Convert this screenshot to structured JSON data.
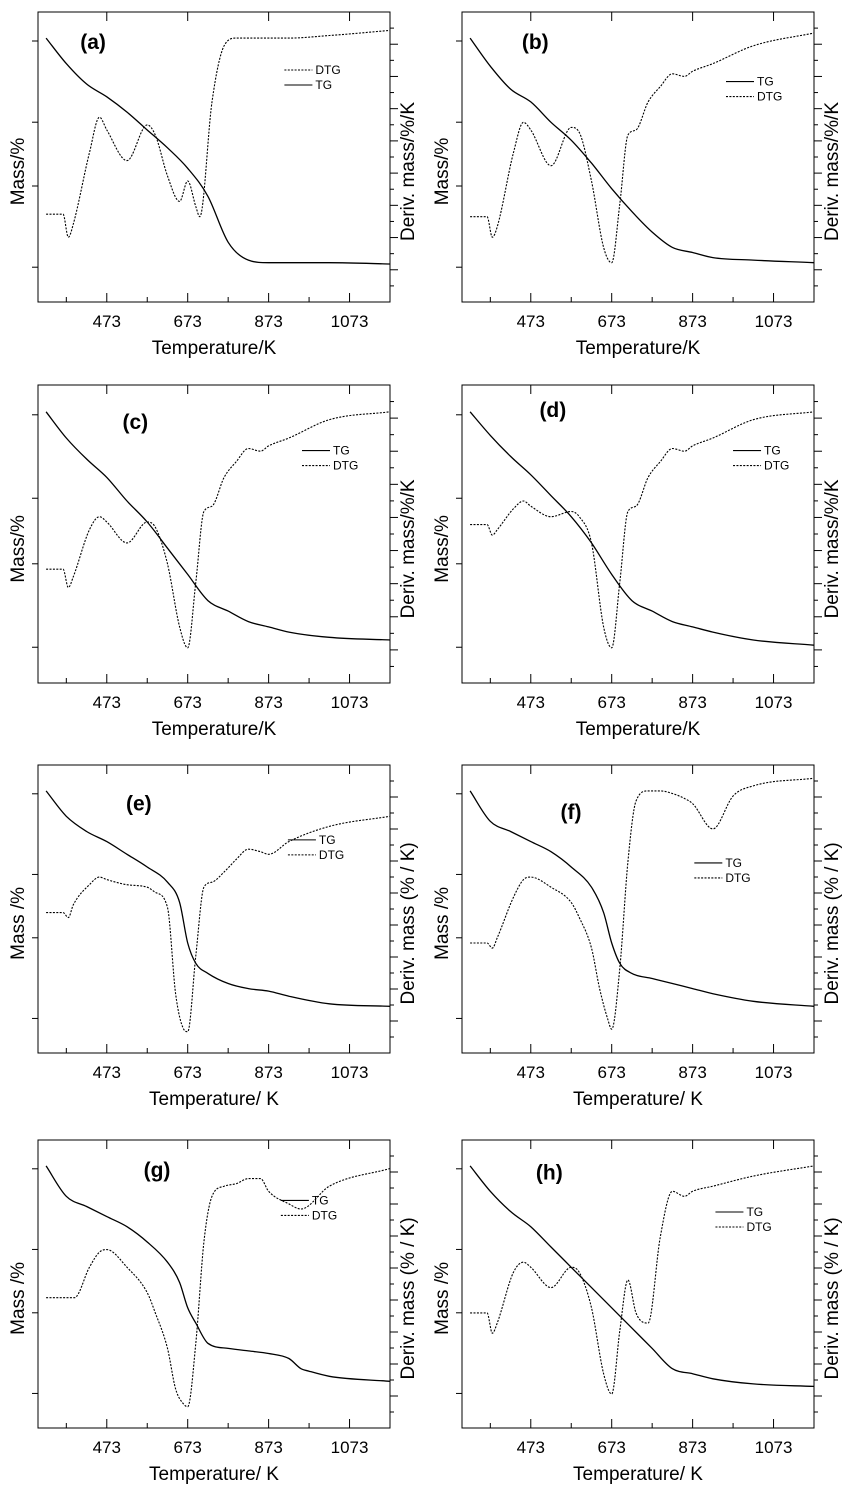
{
  "chart_data": [
    {
      "type": "line",
      "panel_label": "(a)",
      "xlabel": "Temperature/K",
      "ylabel_left": "Mass/%",
      "ylabel_right": "Deriv. mass/%/K",
      "x_ticks": [
        "473",
        "673",
        "873",
        "1073"
      ],
      "xlim": [
        303,
        1173
      ],
      "legend": [
        {
          "name": "DTG",
          "style": "dotted"
        },
        {
          "name": "TG",
          "style": "solid"
        }
      ],
      "legend_position": "top-right",
      "series": [
        {
          "name": "TG",
          "axis": "left",
          "x": [
            323,
            373,
            423,
            473,
            523,
            573,
            623,
            673,
            723,
            773,
            823,
            873,
            923,
            1023,
            1173
          ],
          "y": [
            1.0,
            0.9,
            0.82,
            0.77,
            0.71,
            0.64,
            0.57,
            0.49,
            0.38,
            0.2,
            0.13,
            0.12,
            0.12,
            0.12,
            0.115
          ]
        },
        {
          "name": "DTG",
          "axis": "right",
          "x": [
            323,
            365,
            378,
            390,
            430,
            455,
            473,
            523,
            573,
            593,
            623,
            653,
            673,
            693,
            703,
            733,
            763,
            793,
            823,
            873,
            923,
            1023,
            1173
          ],
          "y": [
            0.31,
            0.31,
            0.22,
            0.27,
            0.55,
            0.69,
            0.64,
            0.52,
            0.66,
            0.62,
            0.46,
            0.36,
            0.44,
            0.34,
            0.3,
            0.75,
            0.97,
            1.0,
            1.0,
            1.0,
            1.0,
            1.01,
            1.03
          ]
        }
      ]
    },
    {
      "type": "line",
      "panel_label": "(b)",
      "xlabel": "Temperature/K",
      "ylabel_left": "Mass/%",
      "ylabel_right": "Deriv. mass/%/K",
      "x_ticks": [
        "473",
        "673",
        "873",
        "1073"
      ],
      "xlim": [
        303,
        1173
      ],
      "legend": [
        {
          "name": "TG",
          "style": "solid"
        },
        {
          "name": "DTG",
          "style": "dotted"
        }
      ],
      "legend_position": "top-right",
      "series": [
        {
          "name": "TG",
          "axis": "left",
          "x": [
            323,
            373,
            423,
            473,
            523,
            573,
            623,
            673,
            723,
            773,
            823,
            873,
            923,
            1023,
            1173
          ],
          "y": [
            1.0,
            0.89,
            0.8,
            0.75,
            0.67,
            0.6,
            0.51,
            0.41,
            0.32,
            0.24,
            0.18,
            0.16,
            0.14,
            0.13,
            0.12
          ]
        },
        {
          "name": "DTG",
          "axis": "right",
          "x": [
            323,
            365,
            378,
            390,
            430,
            455,
            473,
            523,
            573,
            593,
            623,
            653,
            673,
            693,
            713,
            733,
            763,
            793,
            823,
            853,
            873,
            923,
            1023,
            1173
          ],
          "y": [
            0.3,
            0.3,
            0.22,
            0.26,
            0.55,
            0.67,
            0.64,
            0.5,
            0.65,
            0.63,
            0.44,
            0.18,
            0.12,
            0.35,
            0.62,
            0.64,
            0.75,
            0.81,
            0.86,
            0.85,
            0.87,
            0.9,
            0.97,
            1.02
          ]
        }
      ]
    },
    {
      "type": "line",
      "panel_label": "(c)",
      "xlabel": "Temperature/K",
      "ylabel_left": "Mass/%",
      "ylabel_right": "Deriv. mass/%/K",
      "x_ticks": [
        "473",
        "673",
        "873",
        "1073"
      ],
      "xlim": [
        303,
        1173
      ],
      "legend": [
        {
          "name": "TG",
          "style": "solid"
        },
        {
          "name": "DTG",
          "style": "dotted"
        }
      ],
      "legend_position": "top-right",
      "series": [
        {
          "name": "TG",
          "axis": "left",
          "x": [
            323,
            373,
            423,
            473,
            523,
            573,
            623,
            673,
            723,
            773,
            823,
            873,
            923,
            1023,
            1173
          ],
          "y": [
            1.0,
            0.9,
            0.82,
            0.75,
            0.66,
            0.58,
            0.48,
            0.38,
            0.28,
            0.24,
            0.2,
            0.18,
            0.16,
            0.14,
            0.13
          ]
        },
        {
          "name": "DTG",
          "axis": "right",
          "x": [
            323,
            365,
            378,
            390,
            430,
            455,
            473,
            523,
            573,
            593,
            623,
            653,
            673,
            693,
            713,
            733,
            763,
            793,
            823,
            853,
            873,
            923,
            1023,
            1173
          ],
          "y": [
            0.4,
            0.4,
            0.33,
            0.37,
            0.55,
            0.6,
            0.58,
            0.5,
            0.58,
            0.56,
            0.42,
            0.18,
            0.1,
            0.35,
            0.62,
            0.64,
            0.75,
            0.81,
            0.86,
            0.85,
            0.87,
            0.9,
            0.97,
            1.0
          ]
        }
      ]
    },
    {
      "type": "line",
      "panel_label": "(d)",
      "xlabel": "Temperature/K",
      "ylabel_left": "Mass/%",
      "ylabel_right": "Deriv. mass/%/K",
      "x_ticks": [
        "473",
        "673",
        "873",
        "1073"
      ],
      "xlim": [
        303,
        1173
      ],
      "legend": [
        {
          "name": "TG",
          "style": "solid"
        },
        {
          "name": "DTG",
          "style": "dotted"
        }
      ],
      "legend_position": "top-right",
      "series": [
        {
          "name": "TG",
          "axis": "left",
          "x": [
            323,
            373,
            423,
            473,
            523,
            573,
            623,
            673,
            723,
            773,
            823,
            873,
            923,
            1023,
            1173
          ],
          "y": [
            1.0,
            0.91,
            0.83,
            0.76,
            0.68,
            0.6,
            0.5,
            0.38,
            0.28,
            0.24,
            0.2,
            0.18,
            0.16,
            0.13,
            0.11
          ]
        },
        {
          "name": "DTG",
          "axis": "right",
          "x": [
            323,
            365,
            378,
            390,
            430,
            455,
            473,
            523,
            573,
            593,
            623,
            653,
            673,
            693,
            713,
            733,
            763,
            793,
            823,
            853,
            873,
            923,
            1023,
            1173
          ],
          "y": [
            0.57,
            0.57,
            0.53,
            0.55,
            0.63,
            0.66,
            0.64,
            0.6,
            0.62,
            0.6,
            0.5,
            0.18,
            0.1,
            0.35,
            0.62,
            0.64,
            0.75,
            0.81,
            0.86,
            0.85,
            0.87,
            0.9,
            0.97,
            1.0
          ]
        }
      ]
    },
    {
      "type": "line",
      "panel_label": "(e)",
      "xlabel": "Temperature/ K",
      "ylabel_left": "Mass /%",
      "ylabel_right": "Deriv. mass (% / K)",
      "x_ticks": [
        "473",
        "673",
        "873",
        "1073"
      ],
      "xlim": [
        303,
        1173
      ],
      "legend": [
        {
          "name": "TG",
          "style": "solid"
        },
        {
          "name": "DTG",
          "style": "dotted"
        }
      ],
      "legend_position": "top-right",
      "series": [
        {
          "name": "TG",
          "axis": "left",
          "x": [
            323,
            373,
            423,
            473,
            523,
            573,
            623,
            653,
            673,
            693,
            723,
            773,
            823,
            873,
            923,
            1023,
            1173
          ],
          "y": [
            1.0,
            0.9,
            0.84,
            0.8,
            0.75,
            0.7,
            0.64,
            0.56,
            0.4,
            0.32,
            0.28,
            0.24,
            0.22,
            0.21,
            0.19,
            0.16,
            0.15
          ]
        },
        {
          "name": "DTG",
          "axis": "right",
          "x": [
            323,
            365,
            378,
            390,
            430,
            455,
            473,
            523,
            573,
            593,
            623,
            643,
            663,
            673,
            693,
            713,
            733,
            763,
            793,
            823,
            853,
            873,
            923,
            1023,
            1173
          ],
          "y": [
            0.52,
            0.52,
            0.5,
            0.55,
            0.63,
            0.66,
            0.65,
            0.63,
            0.62,
            0.6,
            0.54,
            0.2,
            0.06,
            0.05,
            0.35,
            0.62,
            0.64,
            0.68,
            0.73,
            0.77,
            0.76,
            0.75,
            0.8,
            0.86,
            0.9
          ]
        }
      ]
    },
    {
      "type": "line",
      "panel_label": "(f)",
      "xlabel": "Temperature/ K",
      "ylabel_left": "Mass /%",
      "ylabel_right": "Deriv. mass (% / K)",
      "x_ticks": [
        "473",
        "673",
        "873",
        "1073"
      ],
      "xlim": [
        303,
        1173
      ],
      "legend": [
        {
          "name": "TG",
          "style": "solid"
        },
        {
          "name": "DTG",
          "style": "dotted"
        }
      ],
      "legend_position": "top-right",
      "series": [
        {
          "name": "TG",
          "axis": "left",
          "x": [
            323,
            373,
            423,
            473,
            523,
            573,
            623,
            653,
            673,
            693,
            723,
            773,
            823,
            873,
            923,
            1023,
            1173
          ],
          "y": [
            1.0,
            0.88,
            0.84,
            0.8,
            0.76,
            0.7,
            0.62,
            0.52,
            0.4,
            0.32,
            0.28,
            0.26,
            0.24,
            0.22,
            0.2,
            0.17,
            0.15
          ]
        },
        {
          "name": "DTG",
          "axis": "right",
          "x": [
            323,
            365,
            378,
            390,
            430,
            455,
            473,
            523,
            573,
            593,
            623,
            643,
            663,
            673,
            693,
            713,
            733,
            763,
            793,
            823,
            853,
            873,
            923,
            973,
            1023,
            1173
          ],
          "y": [
            0.4,
            0.4,
            0.38,
            0.42,
            0.58,
            0.65,
            0.66,
            0.62,
            0.56,
            0.5,
            0.38,
            0.22,
            0.1,
            0.06,
            0.3,
            0.72,
            0.96,
            1.0,
            1.0,
            0.99,
            0.97,
            0.95,
            0.85,
            0.98,
            1.02,
            1.05
          ]
        }
      ]
    },
    {
      "type": "line",
      "panel_label": "(g)",
      "xlabel": "Temperature/ K",
      "ylabel_left": "Mass /%",
      "ylabel_right": "Deriv. mass (% / K)",
      "x_ticks": [
        "473",
        "673",
        "873",
        "1073"
      ],
      "xlim": [
        303,
        1173
      ],
      "legend": [
        {
          "name": "TG",
          "style": "solid"
        },
        {
          "name": "DTG",
          "style": "dotted"
        }
      ],
      "legend_position": "top-right",
      "series": [
        {
          "name": "TG",
          "axis": "left",
          "x": [
            323,
            373,
            423,
            473,
            523,
            573,
            623,
            653,
            673,
            693,
            723,
            773,
            823,
            873,
            923,
            953,
            973,
            1023,
            1173
          ],
          "y": [
            1.0,
            0.88,
            0.84,
            0.8,
            0.76,
            0.7,
            0.62,
            0.54,
            0.44,
            0.38,
            0.3,
            0.28,
            0.27,
            0.26,
            0.24,
            0.2,
            0.19,
            0.17,
            0.15
          ]
        },
        {
          "name": "DTG",
          "axis": "right",
          "x": [
            323,
            373,
            393,
            430,
            455,
            473,
            523,
            573,
            593,
            623,
            643,
            663,
            673,
            693,
            713,
            733,
            763,
            793,
            823,
            853,
            873,
            923,
            953,
            1023,
            1173
          ],
          "y": [
            0.48,
            0.48,
            0.48,
            0.6,
            0.66,
            0.67,
            0.6,
            0.5,
            0.42,
            0.28,
            0.12,
            0.06,
            0.05,
            0.3,
            0.7,
            0.88,
            0.92,
            0.93,
            0.95,
            0.95,
            0.9,
            0.85,
            0.83,
            0.92,
            0.99
          ]
        }
      ]
    },
    {
      "type": "line",
      "panel_label": "(h)",
      "xlabel": "Temperature/ K",
      "ylabel_left": "Mass /%",
      "ylabel_right": "Deriv. mass (% / K)",
      "x_ticks": [
        "473",
        "673",
        "873",
        "1073"
      ],
      "xlim": [
        303,
        1173
      ],
      "legend": [
        {
          "name": "TG",
          "style": "solid"
        },
        {
          "name": "DTG",
          "style": "dotted"
        }
      ],
      "legend_position": "top-right",
      "series": [
        {
          "name": "TG",
          "axis": "left",
          "x": [
            323,
            373,
            423,
            473,
            523,
            573,
            623,
            673,
            723,
            773,
            823,
            873,
            923,
            1023,
            1173
          ],
          "y": [
            1.0,
            0.9,
            0.82,
            0.76,
            0.68,
            0.6,
            0.52,
            0.44,
            0.36,
            0.28,
            0.2,
            0.18,
            0.16,
            0.14,
            0.13
          ]
        },
        {
          "name": "DTG",
          "axis": "right",
          "x": [
            323,
            365,
            378,
            390,
            430,
            455,
            473,
            523,
            573,
            593,
            623,
            653,
            673,
            693,
            713,
            733,
            763,
            793,
            823,
            853,
            873,
            923,
            1023,
            1173
          ],
          "y": [
            0.42,
            0.42,
            0.34,
            0.38,
            0.58,
            0.62,
            0.6,
            0.52,
            0.6,
            0.58,
            0.44,
            0.18,
            0.1,
            0.35,
            0.55,
            0.42,
            0.38,
            0.72,
            0.9,
            0.88,
            0.9,
            0.92,
            0.96,
            1.0
          ]
        }
      ]
    }
  ]
}
